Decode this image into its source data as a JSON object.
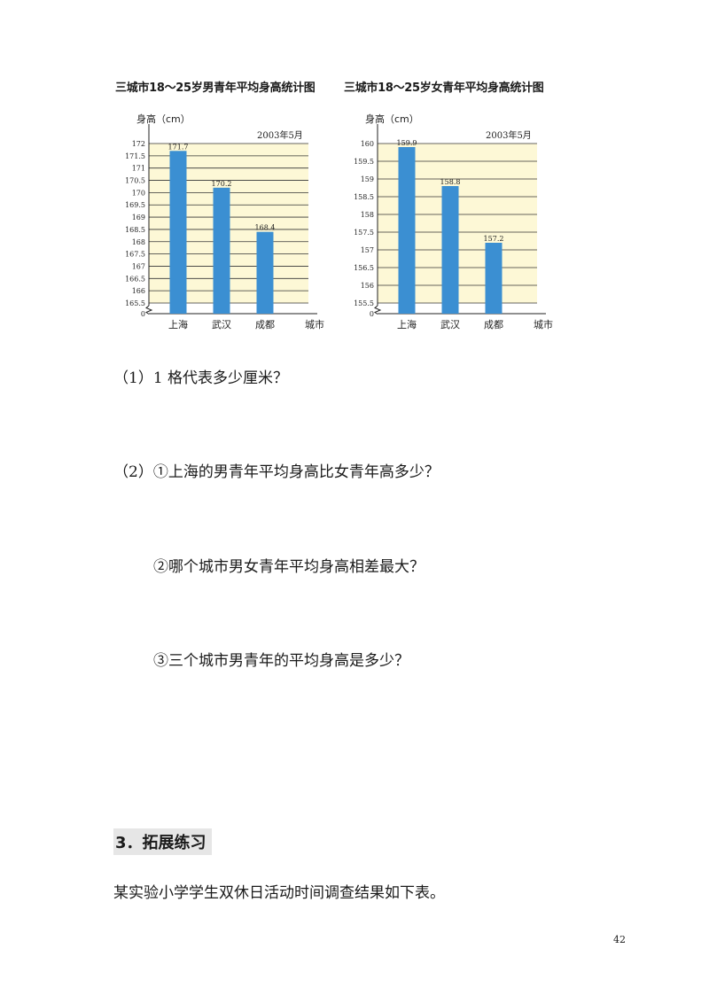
{
  "chart_data": [
    {
      "type": "bar",
      "title": "三城市18～25岁男青年平均身高统计图",
      "ylabel": "身高（cm）",
      "xlabel": "城市",
      "annotation": "2003年5月",
      "categories": [
        "上海",
        "武汉",
        "成都"
      ],
      "values": [
        171.7,
        170.2,
        168.4
      ],
      "value_labels": [
        "171.7",
        "170.2",
        "168.4"
      ],
      "yticks": [
        "172",
        "171.5",
        "171",
        "170.5",
        "170",
        "169.5",
        "169",
        "168.5",
        "168",
        "167.5",
        "167",
        "166.5",
        "166",
        "165.5"
      ],
      "ylim": [
        165.5,
        172
      ],
      "tick_step": 0.5,
      "zero_label": "0",
      "axis_break": true,
      "grid": true,
      "colors": {
        "bar": "#3b8fd2",
        "background": "#fdf8d6",
        "grid": "#333333"
      }
    },
    {
      "type": "bar",
      "title": "三城市18～25岁女青年平均身高统计图",
      "ylabel": "身高（cm）",
      "xlabel": "城市",
      "annotation": "2003年5月",
      "categories": [
        "上海",
        "武汉",
        "成都"
      ],
      "values": [
        159.9,
        158.8,
        157.2
      ],
      "value_labels": [
        "159.9",
        "158.8",
        "157.2"
      ],
      "yticks": [
        "160",
        "159.5",
        "159",
        "158.5",
        "158",
        "157.5",
        "157",
        "156.5",
        "156",
        "155.5"
      ],
      "ylim": [
        155.5,
        160
      ],
      "tick_step": 0.5,
      "zero_label": "0",
      "axis_break": true,
      "grid": true,
      "colors": {
        "bar": "#3b8fd2",
        "background": "#fdf8d6",
        "grid": "#333333"
      }
    }
  ],
  "questions": {
    "q1": "（1）1 格代表多少厘米？",
    "q2a": "（2）①上海的男青年平均身高比女青年高多少？",
    "q2b": "②哪个城市男女青年平均身高相差最大？",
    "q2c": "③三个城市男青年的平均身高是多少？"
  },
  "section": {
    "title": "3．拓展练习"
  },
  "intro": "某实验小学学生双休日活动时间调查结果如下表。",
  "page_number": "42"
}
